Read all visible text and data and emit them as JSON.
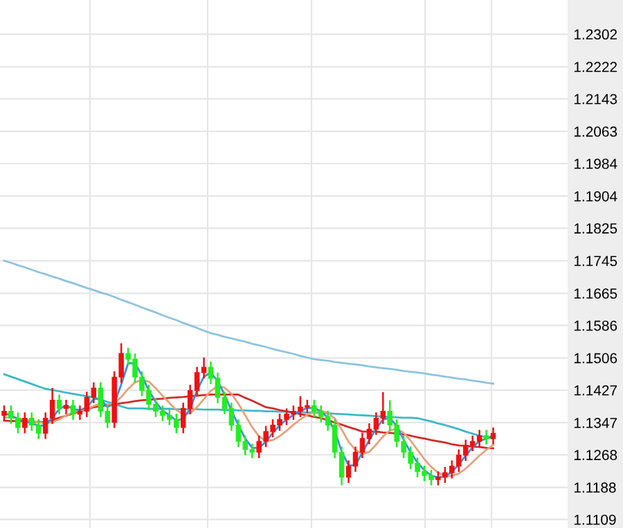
{
  "chart_data": {
    "type": "candlestick",
    "categories": [
      null,
      null,
      null,
      null,
      null,
      null,
      null,
      null,
      null,
      null,
      null,
      null,
      null,
      null,
      null,
      null,
      null,
      null,
      null,
      null,
      null,
      null,
      null,
      null,
      null,
      null,
      null,
      null,
      null,
      null,
      null,
      null,
      null,
      null,
      null,
      null,
      null,
      null,
      null,
      null,
      null,
      null,
      null,
      null,
      null,
      null,
      null,
      null,
      null,
      null,
      null,
      null,
      null,
      null,
      null,
      null,
      null,
      null,
      null,
      null,
      null,
      null,
      null,
      null,
      null,
      null,
      null,
      null,
      null,
      null,
      null,
      null
    ],
    "ohlc": [
      [
        1.1365,
        1.1387,
        1.1353,
        1.1375
      ],
      [
        1.1375,
        1.1387,
        1.1346,
        1.1358
      ],
      [
        1.1358,
        1.137,
        1.1323,
        1.1335
      ],
      [
        1.1335,
        1.137,
        1.1323,
        1.1358
      ],
      [
        1.1358,
        1.137,
        1.1329,
        1.1341
      ],
      [
        1.1341,
        1.1353,
        1.1309,
        1.1321
      ],
      [
        1.1321,
        1.137,
        1.1309,
        1.1358
      ],
      [
        1.1358,
        1.143,
        1.1346,
        1.1402
      ],
      [
        1.1402,
        1.1414,
        1.137,
        1.1382
      ],
      [
        1.1382,
        1.1401,
        1.137,
        1.1389
      ],
      [
        1.1389,
        1.1401,
        1.1356,
        1.1368
      ],
      [
        1.1368,
        1.1387,
        1.1356,
        1.1375
      ],
      [
        1.1375,
        1.1421,
        1.1363,
        1.1409
      ],
      [
        1.1409,
        1.1444,
        1.1397,
        1.1432
      ],
      [
        1.1432,
        1.1444,
        1.1363,
        1.1375
      ],
      [
        1.1375,
        1.1387,
        1.1336,
        1.1348
      ],
      [
        1.1348,
        1.1471,
        1.1336,
        1.1459
      ],
      [
        1.1459,
        1.154,
        1.1447,
        1.1517
      ],
      [
        1.1517,
        1.1529,
        1.1491,
        1.1503
      ],
      [
        1.1503,
        1.1515,
        1.1447,
        1.1459
      ],
      [
        1.1459,
        1.1471,
        1.1414,
        1.1426
      ],
      [
        1.1426,
        1.1438,
        1.138,
        1.1392
      ],
      [
        1.1392,
        1.1404,
        1.1363,
        1.1375
      ],
      [
        1.1375,
        1.1387,
        1.1353,
        1.1365
      ],
      [
        1.1365,
        1.1377,
        1.1343,
        1.1355
      ],
      [
        1.1355,
        1.1367,
        1.1323,
        1.1335
      ],
      [
        1.1335,
        1.1394,
        1.1323,
        1.1382
      ],
      [
        1.1382,
        1.1438,
        1.137,
        1.1426
      ],
      [
        1.1426,
        1.1482,
        1.1414,
        1.147
      ],
      [
        1.147,
        1.1505,
        1.1458,
        1.1483
      ],
      [
        1.1483,
        1.1495,
        1.1444,
        1.1456
      ],
      [
        1.1456,
        1.1468,
        1.1397,
        1.1409
      ],
      [
        1.1409,
        1.1421,
        1.137,
        1.1382
      ],
      [
        1.1382,
        1.1394,
        1.1329,
        1.1341
      ],
      [
        1.1341,
        1.1353,
        1.1289,
        1.1301
      ],
      [
        1.1301,
        1.1313,
        1.1269,
        1.1281
      ],
      [
        1.1281,
        1.1293,
        1.1262,
        1.1274
      ],
      [
        1.1274,
        1.1313,
        1.1262,
        1.1301
      ],
      [
        1.1301,
        1.1337,
        1.1289,
        1.1325
      ],
      [
        1.1325,
        1.1353,
        1.1313,
        1.1341
      ],
      [
        1.1341,
        1.1367,
        1.1329,
        1.1355
      ],
      [
        1.1355,
        1.138,
        1.1343,
        1.1368
      ],
      [
        1.1368,
        1.1387,
        1.1356,
        1.1375
      ],
      [
        1.1375,
        1.141,
        1.1363,
        1.1385
      ],
      [
        1.1385,
        1.1401,
        1.1373,
        1.1389
      ],
      [
        1.1389,
        1.1401,
        1.1363,
        1.1375
      ],
      [
        1.1375,
        1.1387,
        1.135,
        1.1362
      ],
      [
        1.1362,
        1.1374,
        1.1329,
        1.1341
      ],
      [
        1.1341,
        1.1353,
        1.1262,
        1.1274
      ],
      [
        1.1274,
        1.1286,
        1.1195,
        1.1213
      ],
      [
        1.1213,
        1.1252,
        1.1201,
        1.124
      ],
      [
        1.124,
        1.1286,
        1.1228,
        1.1274
      ],
      [
        1.1274,
        1.132,
        1.1262,
        1.1308
      ],
      [
        1.1308,
        1.1343,
        1.1296,
        1.1331
      ],
      [
        1.1331,
        1.137,
        1.1319,
        1.1358
      ],
      [
        1.1358,
        1.142,
        1.1346,
        1.1375
      ],
      [
        1.1375,
        1.14,
        1.1329,
        1.1341
      ],
      [
        1.1341,
        1.1353,
        1.1289,
        1.1301
      ],
      [
        1.1301,
        1.1313,
        1.1262,
        1.1274
      ],
      [
        1.1274,
        1.1286,
        1.1235,
        1.1247
      ],
      [
        1.1247,
        1.1259,
        1.1215,
        1.1227
      ],
      [
        1.1227,
        1.1239,
        1.1205,
        1.1217
      ],
      [
        1.1217,
        1.1229,
        1.1195,
        1.1207
      ],
      [
        1.1207,
        1.1225,
        1.1195,
        1.1213
      ],
      [
        1.1213,
        1.1236,
        1.1201,
        1.1224
      ],
      [
        1.1224,
        1.1252,
        1.1212,
        1.124
      ],
      [
        1.124,
        1.1279,
        1.1228,
        1.1267
      ],
      [
        1.1267,
        1.1303,
        1.1255,
        1.1291
      ],
      [
        1.1291,
        1.1313,
        1.1279,
        1.1301
      ],
      [
        1.1301,
        1.1327,
        1.1289,
        1.1315
      ],
      [
        1.1315,
        1.1327,
        1.1296,
        1.1308
      ],
      [
        1.1308,
        1.1333,
        1.1296,
        1.1321
      ]
    ],
    "colors": [
      "#ee1111",
      "#22ee22",
      "#22ee22",
      "#ee1111",
      "#22ee22",
      "#22ee22",
      "#ee1111",
      "#ee1111",
      "#22ee22",
      "#ee1111",
      "#22ee22",
      "#ee1111",
      "#ee1111",
      "#ee1111",
      "#22ee22",
      "#22ee22",
      "#ee1111",
      "#ee1111",
      "#22ee22",
      "#22ee22",
      "#22ee22",
      "#22ee22",
      "#22ee22",
      "#22ee22",
      "#22ee22",
      "#22ee22",
      "#ee1111",
      "#ee1111",
      "#ee1111",
      "#ee1111",
      "#22ee22",
      "#22ee22",
      "#22ee22",
      "#22ee22",
      "#22ee22",
      "#22ee22",
      "#22ee22",
      "#ee1111",
      "#ee1111",
      "#ee1111",
      "#ee1111",
      "#ee1111",
      "#ee1111",
      "#ee1111",
      "#ee1111",
      "#22ee22",
      "#22ee22",
      "#22ee22",
      "#22ee22",
      "#22ee22",
      "#ee1111",
      "#ee1111",
      "#ee1111",
      "#ee1111",
      "#ee1111",
      "#ee1111",
      "#22ee22",
      "#22ee22",
      "#22ee22",
      "#22ee22",
      "#22ee22",
      "#22ee22",
      "#22ee22",
      "#ee1111",
      "#ee1111",
      "#ee1111",
      "#ee1111",
      "#ee1111",
      "#ee1111",
      "#ee1111",
      "#22ee22",
      "#ee1111"
    ],
    "series": [
      {
        "type": "line",
        "color": "#8ec3df",
        "values": [
          1.1745,
          1.174,
          1.1734,
          1.1729,
          1.1723,
          1.1717,
          1.1712,
          1.1706,
          1.1701,
          1.1695,
          1.169,
          1.1684,
          1.1678,
          1.1673,
          1.1667,
          1.1662,
          1.1656,
          1.1649,
          1.1643,
          1.1637,
          1.163,
          1.1624,
          1.1618,
          1.1611,
          1.1605,
          1.1599,
          1.1592,
          1.1586,
          1.158,
          1.1573,
          1.1567,
          1.1563,
          1.1558,
          1.1554,
          1.155,
          1.1546,
          1.1541,
          1.1537,
          1.1533,
          1.1528,
          1.1524,
          1.152,
          1.1516,
          1.1511,
          1.1507,
          1.1503,
          1.1501,
          1.1499,
          1.1496,
          1.1494,
          1.1492,
          1.149,
          1.1488,
          1.1485,
          1.1483,
          1.1481,
          1.1479,
          1.1477,
          1.1474,
          1.1472,
          1.147,
          1.1468,
          1.1465,
          1.1463,
          1.146,
          1.1458,
          1.1455,
          1.1453,
          1.145,
          1.1448,
          1.1445,
          1.1443
        ]
      },
      {
        "type": "line",
        "color": "#3cb8c8",
        "values": [
          1.1466,
          1.146,
          1.1454,
          1.1448,
          1.1442,
          1.1436,
          1.143,
          1.1427,
          1.1424,
          1.1421,
          1.1418,
          1.1415,
          1.1412,
          1.1409,
          1.1404,
          1.1398,
          1.1393,
          1.1387,
          1.1382,
          1.1382,
          1.1382,
          1.1381,
          1.1381,
          1.1381,
          1.1381,
          1.138,
          1.138,
          1.138,
          1.138,
          1.1379,
          1.1379,
          1.1379,
          1.1378,
          1.1378,
          1.1377,
          1.1377,
          1.1376,
          1.1376,
          1.1375,
          1.1375,
          1.1374,
          1.1374,
          1.1373,
          1.1373,
          1.1372,
          1.1372,
          1.1371,
          1.137,
          1.1369,
          1.1368,
          1.1367,
          1.1366,
          1.1365,
          1.1364,
          1.1363,
          1.1362,
          1.1361,
          1.136,
          1.1359,
          1.1359,
          1.1358,
          1.1354,
          1.135,
          1.1345,
          1.1341,
          1.1336,
          1.1331,
          1.1325,
          1.132,
          1.1315,
          1.1311,
          1.1308
        ]
      },
      {
        "type": "line",
        "color": "#d42a2a",
        "values": [
          1.1352,
          1.1351,
          1.1351,
          1.135,
          1.1349,
          1.1349,
          1.1348,
          1.1353,
          1.1359,
          1.1364,
          1.1369,
          1.1375,
          1.138,
          1.1385,
          1.1387,
          1.139,
          1.1392,
          1.1395,
          1.1397,
          1.14,
          1.1402,
          1.1403,
          1.1405,
          1.1406,
          1.1408,
          1.1409,
          1.141,
          1.1412,
          1.1413,
          1.1415,
          1.1416,
          1.1416,
          1.1416,
          1.1416,
          1.1416,
          1.1408,
          1.1401,
          1.1393,
          1.1385,
          1.1382,
          1.1378,
          1.1375,
          1.1372,
          1.1368,
          1.1365,
          1.1361,
          1.1358,
          1.1353,
          1.1347,
          1.1342,
          1.1336,
          1.1331,
          1.1325,
          1.1325,
          1.1325,
          1.1323,
          1.1322,
          1.132,
          1.1318,
          1.1315,
          1.1311,
          1.1308,
          1.1304,
          1.1301,
          1.1298,
          1.1294,
          1.1291,
          1.129,
          1.1288,
          1.1287,
          1.1285,
          1.1284
        ]
      },
      {
        "type": "line",
        "color": "#e6a27a",
        "values": [
          1.136,
          1.136,
          1.1358,
          1.1355,
          1.1352,
          1.1348,
          1.1345,
          1.1348,
          1.1355,
          1.1365,
          1.1372,
          1.1377,
          1.138,
          1.1388,
          1.1394,
          1.1392,
          1.1395,
          1.141,
          1.143,
          1.1446,
          1.1452,
          1.1448,
          1.1432,
          1.1413,
          1.1395,
          1.1378,
          1.1368,
          1.137,
          1.1385,
          1.1405,
          1.1425,
          1.1437,
          1.1433,
          1.1418,
          1.1394,
          1.1365,
          1.1336,
          1.1313,
          1.1302,
          1.1304,
          1.1314,
          1.1327,
          1.1342,
          1.1355,
          1.1366,
          1.1373,
          1.1376,
          1.1371,
          1.1357,
          1.133,
          1.13,
          1.128,
          1.127,
          1.1275,
          1.1293,
          1.1313,
          1.1328,
          1.1332,
          1.1322,
          1.1303,
          1.128,
          1.1257,
          1.1238,
          1.1224,
          1.1217,
          1.1216,
          1.1222,
          1.1234,
          1.125,
          1.1266,
          1.128,
          1.1292
        ]
      },
      {
        "type": "line",
        "color": "#3b8fe0",
        "values": [
          1.137,
          1.1365,
          1.1356,
          1.135,
          1.1345,
          1.134,
          1.134,
          1.136,
          1.138,
          1.139,
          1.138,
          1.1378,
          1.1384,
          1.1405,
          1.1405,
          1.1385,
          1.1394,
          1.1441,
          1.1493,
          1.1493,
          1.1463,
          1.1426,
          1.1398,
          1.1377,
          1.1365,
          1.1352,
          1.1357,
          1.1381,
          1.1426,
          1.146,
          1.147,
          1.1449,
          1.1416,
          1.1377,
          1.1341,
          1.1308,
          1.1285,
          1.1285,
          1.13,
          1.1322,
          1.134,
          1.1355,
          1.1366,
          1.1376,
          1.1383,
          1.1383,
          1.1375,
          1.1359,
          1.1326,
          1.1276,
          1.1242,
          1.1242,
          1.1274,
          1.1304,
          1.1332,
          1.1355,
          1.1358,
          1.1339,
          1.1305,
          1.1274,
          1.1249,
          1.123,
          1.1217,
          1.1212,
          1.1215,
          1.1226,
          1.1244,
          1.1266,
          1.1286,
          1.1302,
          1.1308,
          1.1315
        ]
      }
    ],
    "ylim": [
      1.1088,
      1.2386
    ],
    "yticks": [
      1.2302,
      1.2222,
      1.2143,
      1.2063,
      1.1984,
      1.1904,
      1.1825,
      1.1745,
      1.1665,
      1.1586,
      1.1506,
      1.1427,
      1.1347,
      1.1268,
      1.1188,
      1.1109
    ],
    "tick_labels": "y",
    "grid": true
  }
}
